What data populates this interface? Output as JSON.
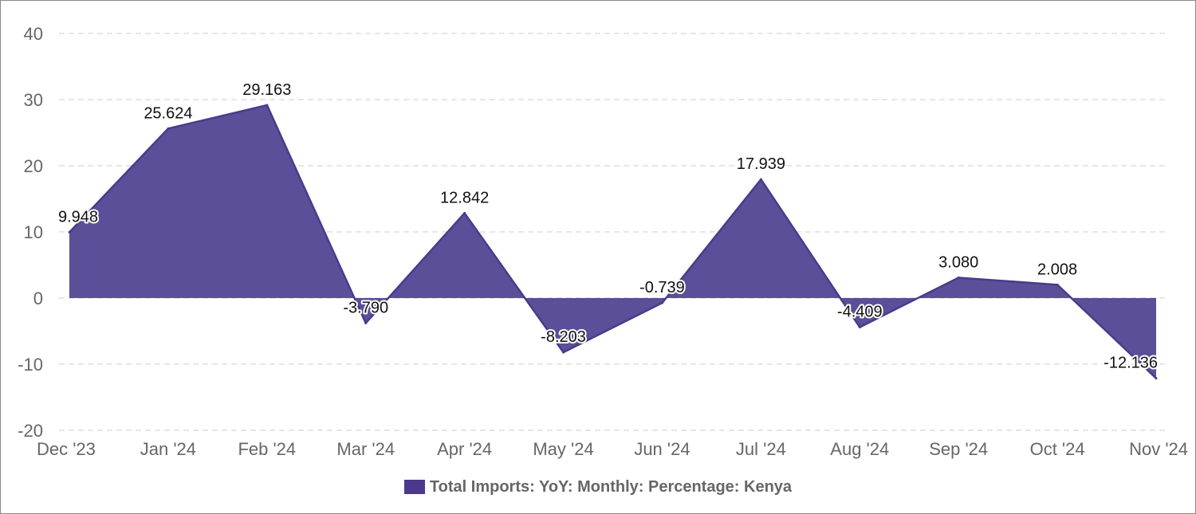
{
  "colors": {
    "series": "#4B3A8C",
    "fill": "#5A4F98",
    "grid": "#d8d8d8"
  },
  "chart_data": {
    "type": "area",
    "title": "",
    "xlabel": "",
    "ylabel": "",
    "categories": [
      "Dec '23",
      "Jan '24",
      "Feb '24",
      "Mar '24",
      "Apr '24",
      "May '24",
      "Jun '24",
      "Jul '24",
      "Aug '24",
      "Sep '24",
      "Oct '24",
      "Nov '24"
    ],
    "y_ticks": [
      40,
      30,
      20,
      10,
      0,
      -10,
      -20
    ],
    "ylim": [
      -20,
      40
    ],
    "grid": true,
    "legend_position": "bottom-center",
    "series": [
      {
        "name": "Total Imports: YoY: Monthly: Percentage: Kenya",
        "values": [
          9.948,
          25.624,
          29.163,
          -3.79,
          12.842,
          -8.203,
          -0.739,
          17.939,
          -4.409,
          3.08,
          2.008,
          -12.136
        ],
        "labels": [
          "9.948",
          "25.624",
          "29.163",
          "-3.790",
          "12.842",
          "-8.203",
          "-0.739",
          "17.939",
          "-4.409",
          "3.080",
          "2.008",
          "-12.136"
        ]
      }
    ]
  }
}
